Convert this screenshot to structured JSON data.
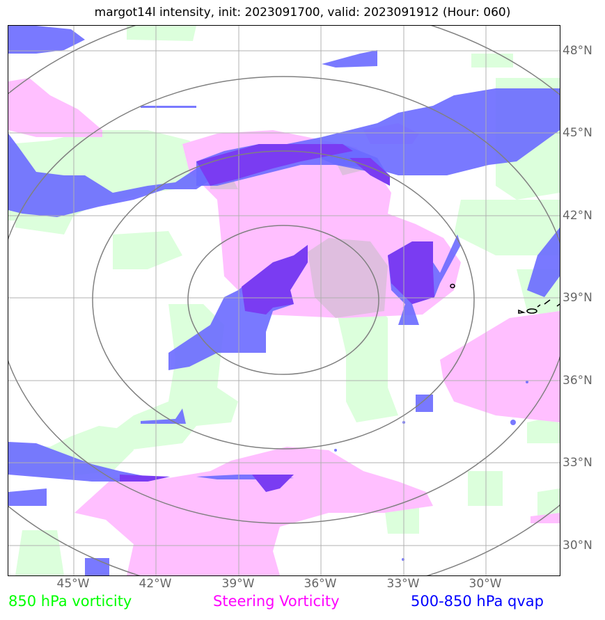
{
  "title": "margot14l intensity, init: 2023091700, valid: 2023091912 (Hour: 060)",
  "lat_labels": [
    "48°N",
    "45°N",
    "42°N",
    "39°N",
    "36°N",
    "33°N",
    "30°N"
  ],
  "lon_labels": [
    "45°W",
    "42°W",
    "39°W",
    "36°W",
    "33°W",
    "30°W"
  ],
  "legend": {
    "vort850": {
      "label": "850 hPa vorticity",
      "color": "#00ff00"
    },
    "steering": {
      "label": "Steering Vorticity",
      "color": "#ff00ff"
    },
    "qvap": {
      "label": "500-850 hPa qvap",
      "color": "#0000ff"
    }
  },
  "colors": {
    "vort850_fill": "#dcffdc",
    "steering_fill": "#ffbfff",
    "qvap_fill": "#6a6aff",
    "overlap_fill": "#8a4cff",
    "range_rings": "#808080",
    "gridlines": "#b0b0b0"
  }
}
